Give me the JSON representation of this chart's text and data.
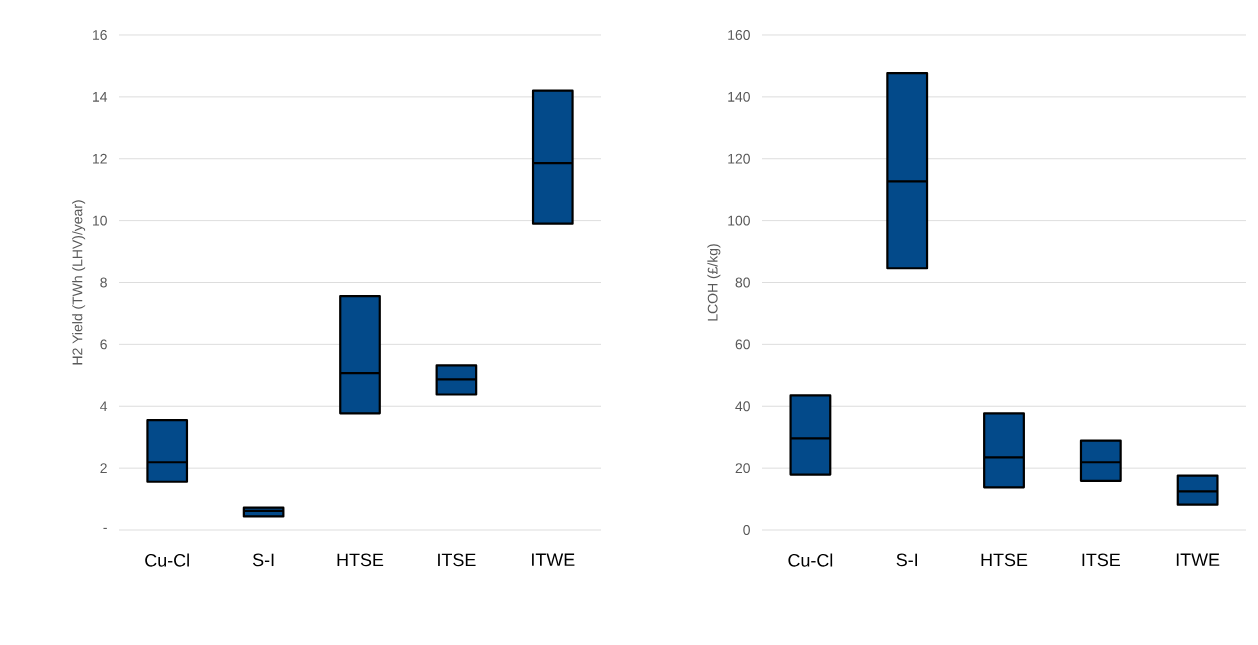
{
  "chart_data": [
    {
      "type": "box",
      "ylabel": "H2 Yield (TWh (LHV)/year)",
      "categories": [
        "Cu-Cl",
        "S-I",
        "HTSE",
        "ITSE",
        "ITWE"
      ],
      "color": "#034a8a",
      "boxes": [
        {
          "low": 1.56,
          "q1": 1.56,
          "median": 2.19,
          "q3": 3.55,
          "high": 3.55
        },
        {
          "low": 0.44,
          "q1": 0.44,
          "median": 0.62,
          "q3": 0.72,
          "high": 0.72
        },
        {
          "low": 3.77,
          "q1": 3.77,
          "median": 5.07,
          "q3": 7.56,
          "high": 7.56
        },
        {
          "low": 4.38,
          "q1": 4.38,
          "median": 4.87,
          "q3": 5.32,
          "high": 5.32
        },
        {
          "low": 9.9,
          "q1": 9.9,
          "median": 11.86,
          "q3": 14.2,
          "high": 14.2
        }
      ],
      "ylim": [
        0,
        16
      ],
      "yticks": [
        {
          "value": 0,
          "label": "-"
        },
        2,
        4,
        6,
        8,
        10,
        12,
        14,
        16
      ],
      "grid": "y"
    },
    {
      "type": "box",
      "ylabel": "LCOH (£/kg)",
      "categories": [
        "Cu-Cl",
        "S-I",
        "HTSE",
        "ITSE",
        "ITWE"
      ],
      "color": "#034a8a",
      "boxes": [
        {
          "low": 17.9,
          "q1": 17.9,
          "median": 29.6,
          "q3": 43.5,
          "high": 43.5
        },
        {
          "low": 84.6,
          "q1": 84.6,
          "median": 112.7,
          "q3": 147.7,
          "high": 147.7
        },
        {
          "low": 13.8,
          "q1": 13.8,
          "median": 23.5,
          "q3": 37.7,
          "high": 37.7
        },
        {
          "low": 15.9,
          "q1": 15.9,
          "median": 21.9,
          "q3": 28.9,
          "high": 28.9
        },
        {
          "low": 8.2,
          "q1": 8.2,
          "median": 12.5,
          "q3": 17.6,
          "high": 17.6
        }
      ],
      "ylim": [
        0,
        160
      ],
      "yticks": [
        0,
        20,
        40,
        60,
        80,
        100,
        120,
        140,
        160
      ],
      "grid": "y"
    }
  ]
}
